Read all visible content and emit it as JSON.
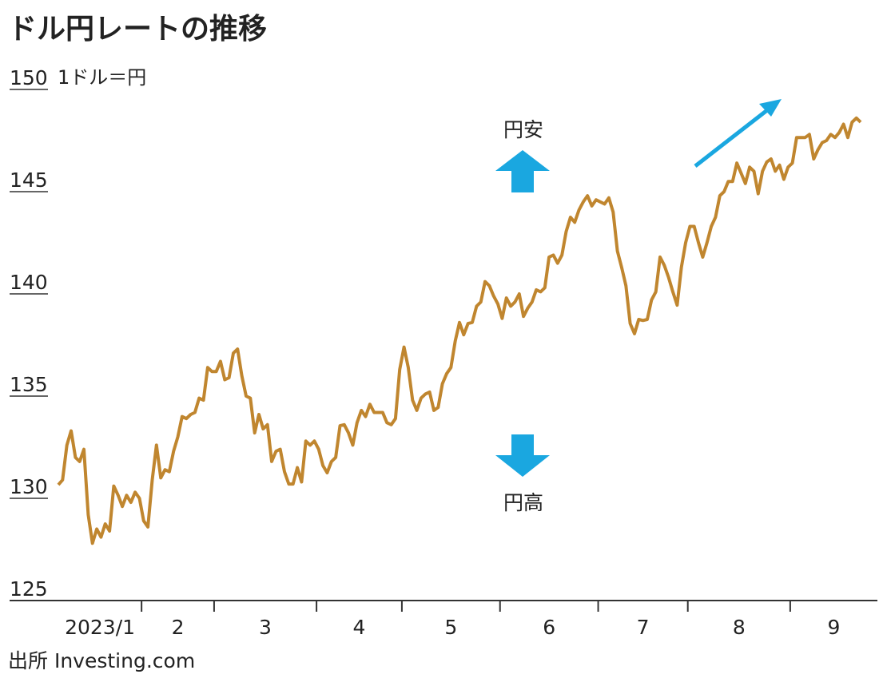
{
  "chart_data": {
    "type": "line",
    "title": "ドル円レートの推移",
    "unit_label": "1ドル＝円",
    "annotations": [
      "円安",
      "円高"
    ],
    "source": "出所 Investing.com",
    "ylim": [
      125,
      150
    ],
    "yticks": [
      125,
      130,
      135,
      140,
      145,
      150
    ],
    "categories": [
      "2023/1",
      null,
      null,
      null,
      null,
      null,
      null,
      null,
      null,
      null,
      null,
      null,
      null,
      null,
      null,
      null,
      null,
      null,
      null,
      null,
      "2",
      null,
      null,
      null,
      null,
      null,
      null,
      null,
      null,
      null,
      null,
      null,
      null,
      null,
      null,
      null,
      null,
      "3",
      null,
      null,
      null,
      null,
      null,
      null,
      null,
      null,
      null,
      null,
      null,
      null,
      null,
      null,
      null,
      null,
      null,
      null,
      null,
      null,
      null,
      null,
      null,
      "4",
      null,
      null,
      null,
      null,
      null,
      null,
      null,
      null,
      null,
      null,
      null,
      null,
      null,
      null,
      null,
      null,
      null,
      null,
      null,
      "5",
      null,
      null,
      null,
      null,
      null,
      null,
      null,
      null,
      null,
      null,
      null,
      null,
      null,
      null,
      null,
      null,
      null,
      null,
      null,
      null,
      null,
      null,
      "6",
      null,
      null,
      null,
      null,
      null,
      null,
      null,
      null,
      null,
      null,
      null,
      null,
      null,
      null,
      null,
      null,
      null,
      null,
      null,
      null,
      null,
      null,
      "7",
      null,
      null,
      null,
      null,
      null,
      null,
      null,
      null,
      null,
      null,
      null,
      null,
      null,
      null,
      null,
      null,
      null,
      null,
      null,
      null,
      "8",
      null,
      null,
      null,
      null,
      null,
      null,
      null,
      null,
      null,
      null,
      null,
      null,
      null,
      null,
      null,
      null,
      null,
      null,
      null,
      null,
      null,
      null,
      null,
      "9",
      null,
      null,
      null,
      null,
      null,
      null,
      null,
      null,
      null,
      null,
      null,
      null,
      null,
      null,
      null,
      null
    ],
    "series": [
      {
        "name": "ドル円",
        "color": "#c0862f",
        "values": [
          130.66,
          130.9,
          132.6,
          133.3,
          132.0,
          131.8,
          132.4,
          129.2,
          127.8,
          128.5,
          128.1,
          128.75,
          128.4,
          130.6,
          130.15,
          129.6,
          130.15,
          129.8,
          130.3,
          130.0,
          128.9,
          128.6,
          130.9,
          132.6,
          131.0,
          131.4,
          131.3,
          132.3,
          133.0,
          134.0,
          133.9,
          134.1,
          134.2,
          134.9,
          134.8,
          136.4,
          136.2,
          136.2,
          136.7,
          135.8,
          135.9,
          137.1,
          137.3,
          136.0,
          135.0,
          134.9,
          133.2,
          134.1,
          133.4,
          133.6,
          131.8,
          132.3,
          132.4,
          131.3,
          130.7,
          130.7,
          131.5,
          130.8,
          132.8,
          132.6,
          132.8,
          132.4,
          131.6,
          131.25,
          131.8,
          132.0,
          133.55,
          133.6,
          133.2,
          132.6,
          133.7,
          134.3,
          134.0,
          134.6,
          134.2,
          134.2,
          134.2,
          133.7,
          133.6,
          133.9,
          136.3,
          137.4,
          136.4,
          134.8,
          134.3,
          134.9,
          135.1,
          135.2,
          134.3,
          134.45,
          135.6,
          136.1,
          136.4,
          137.7,
          138.6,
          138.0,
          138.55,
          138.6,
          139.4,
          139.6,
          140.6,
          140.4,
          139.9,
          139.5,
          138.8,
          139.8,
          139.4,
          139.6,
          140.0,
          138.9,
          139.3,
          139.6,
          140.2,
          140.1,
          140.3,
          141.8,
          141.9,
          141.5,
          141.9,
          143.05,
          143.75,
          143.5,
          144.1,
          144.5,
          144.8,
          144.3,
          144.6,
          144.5,
          144.4,
          144.7,
          144.0,
          142.1,
          141.3,
          140.4,
          138.55,
          138.05,
          138.75,
          138.7,
          138.75,
          139.7,
          140.1,
          141.8,
          141.4,
          140.8,
          140.1,
          139.45,
          141.3,
          142.5,
          143.3,
          143.3,
          142.5,
          141.8,
          142.5,
          143.3,
          143.75,
          144.8,
          145.0,
          145.5,
          145.5,
          146.4,
          145.9,
          145.4,
          146.2,
          146.0,
          144.9,
          146.0,
          146.45,
          146.6,
          146.0,
          146.3,
          145.6,
          146.2,
          146.4,
          147.65,
          147.65,
          147.65,
          147.8,
          146.6,
          147.05,
          147.4,
          147.5,
          147.8,
          147.65,
          147.9,
          148.3,
          147.65,
          148.4,
          148.6,
          148.4
        ]
      }
    ]
  }
}
